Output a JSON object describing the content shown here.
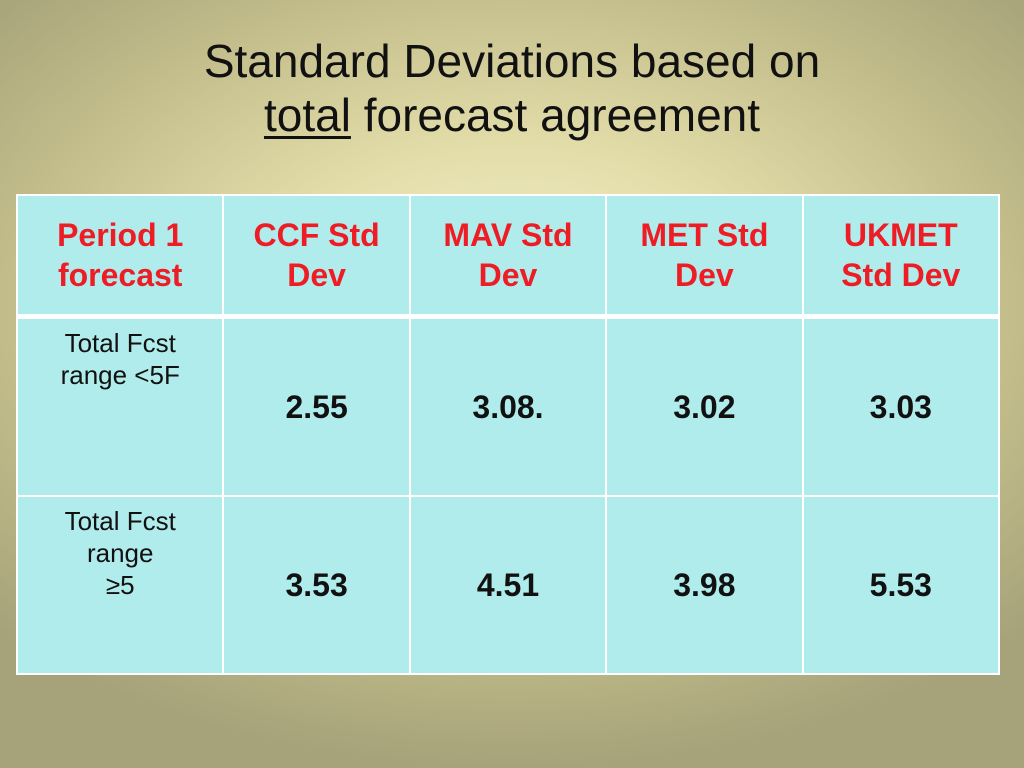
{
  "title": {
    "line1": "Standard Deviations based on",
    "line2_underlined": "total",
    "line2_rest": " forecast agreement"
  },
  "table": {
    "headers": [
      [
        "Period 1",
        "forecast"
      ],
      [
        "CCF Std",
        "Dev"
      ],
      [
        "MAV Std",
        "Dev"
      ],
      [
        "MET Std",
        "Dev"
      ],
      [
        "UKMET",
        "Std Dev"
      ]
    ],
    "rows": [
      {
        "label": [
          "Total Fcst",
          "range <5F"
        ],
        "values": [
          "2.55",
          "3.08.",
          "3.02",
          "3.03"
        ]
      },
      {
        "label": [
          "Total Fcst",
          "range",
          "≥5"
        ],
        "values": [
          "3.53",
          "4.51",
          "3.98",
          "5.53"
        ]
      }
    ]
  },
  "colors": {
    "header_text": "#ee1c25",
    "table_bg": "#b0eceb",
    "border": "#ffffff"
  }
}
